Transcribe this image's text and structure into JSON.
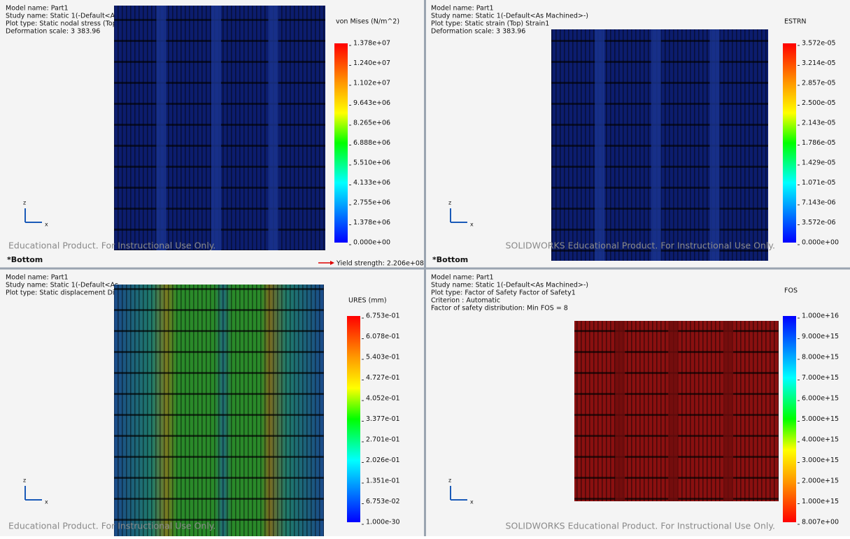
{
  "axis_labels": [
    "z",
    "x"
  ],
  "panels": [
    {
      "info": [
        "Model name: Part1",
        "Study name: Static 1(-Default<As",
        "Plot type: Static nodal stress (Top)",
        "Deformation scale: 3 383.96"
      ],
      "legend": {
        "title": "von Mises (N/m^2)",
        "labels": [
          "1.378e+07",
          "1.240e+07",
          "1.102e+07",
          "9.643e+06",
          "8.265e+06",
          "6.888e+06",
          "5.510e+06",
          "4.133e+06",
          "2.755e+06",
          "1.378e+06",
          "0.000e+00"
        ]
      },
      "watermark": "Educational Product. For Instructional Use Only.",
      "view": "*Bottom",
      "yield": "Yield strength: 2.206e+08"
    },
    {
      "info": [
        "Model name: Part1",
        "Study name: Static 1(-Default<As Machined>-)",
        "Plot type: Static strain (Top) Strain1",
        "Deformation scale: 3 383.96"
      ],
      "legend": {
        "title": "ESTRN",
        "labels": [
          "3.572e-05",
          "3.214e-05",
          "2.857e-05",
          "2.500e-05",
          "2.143e-05",
          "1.786e-05",
          "1.429e-05",
          "1.071e-05",
          "7.143e-06",
          "3.572e-06",
          "0.000e+00"
        ]
      },
      "watermark": "SOLIDWORKS Educational Product. For Instructional Use Only.",
      "view": "*Bottom"
    },
    {
      "info": [
        "Model name: Part1",
        "Study name: Static 1(-Default<As",
        "Plot type: Static displacement Dis"
      ],
      "legend": {
        "title": "URES (mm)",
        "labels": [
          "6.753e-01",
          "6.078e-01",
          "5.403e-01",
          "4.727e-01",
          "4.052e-01",
          "3.377e-01",
          "2.701e-01",
          "2.026e-01",
          "1.351e-01",
          "6.753e-02",
          "1.000e-30"
        ]
      },
      "watermark": "Educational Product. For Instructional Use Only."
    },
    {
      "info": [
        "Model name: Part1",
        "Study name: Static 1(-Default<As Machined>-)",
        "Plot type: Factor of Safety Factor of Safety1",
        "Criterion : Automatic",
        "Factor of safety distribution: Min FOS = 8"
      ],
      "legend": {
        "title": "FOS",
        "labels": [
          "1.000e+16",
          "9.000e+15",
          "8.000e+15",
          "7.000e+15",
          "6.000e+15",
          "5.000e+15",
          "4.000e+15",
          "3.000e+15",
          "2.000e+15",
          "1.000e+15",
          "8.007e+00"
        ]
      },
      "watermark": "SOLIDWORKS Educational Product. For Instructional Use Only."
    }
  ]
}
